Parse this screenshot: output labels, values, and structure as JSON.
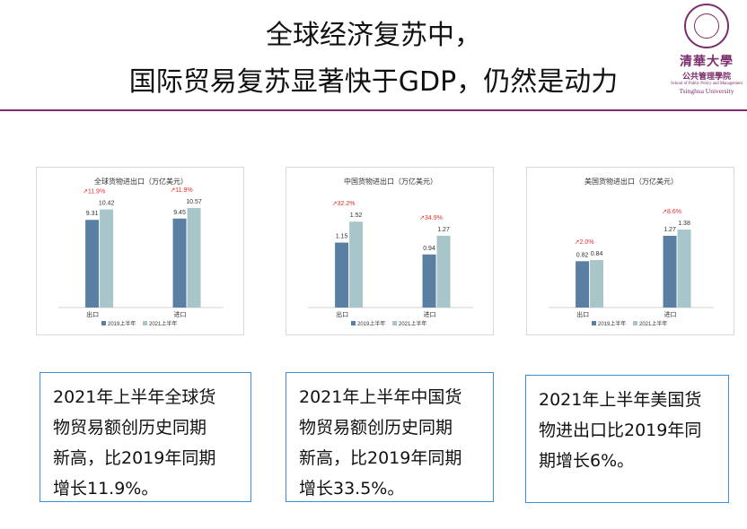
{
  "header": {
    "title_line1": "全球经济复苏中，",
    "title_line2": "国际贸易复苏显著快于GDP，仍然是动力"
  },
  "logo": {
    "cn_name": "清華大學",
    "cn_school": "公共管理學院",
    "en_school": "School of Public Policy and Management",
    "en_university": "Tsinghua University"
  },
  "colors": {
    "series_2019": "#5a7fa3",
    "series_2021": "#a8c6c9",
    "growth_label": "#e8302a",
    "accent_rule": "#7a2d6c",
    "box_border": "#3c8fd6"
  },
  "chart_data": [
    {
      "type": "bar",
      "title": "全球货物进出口（万亿美元）",
      "categories": [
        "出口",
        "进口"
      ],
      "series": [
        {
          "name": "2019上半年",
          "values": [
            9.31,
            9.45
          ]
        },
        {
          "name": "2021上半年",
          "values": [
            10.42,
            10.57
          ]
        }
      ],
      "growth": [
        "↗11.9%",
        "↗11.9%"
      ],
      "ylim": [
        0,
        12
      ],
      "legend": "bottom"
    },
    {
      "type": "bar",
      "title": "中国货物进出口（万亿美元）",
      "categories": [
        "出口",
        "进口"
      ],
      "series": [
        {
          "name": "2019上半年",
          "values": [
            1.15,
            0.94
          ]
        },
        {
          "name": "2021上半年",
          "values": [
            1.52,
            1.27
          ]
        }
      ],
      "growth": [
        "↗32.2%",
        "↗34.9%"
      ],
      "ylim": [
        0,
        2
      ],
      "legend": "bottom"
    },
    {
      "type": "bar",
      "title": "美国货物进出口（万亿美元）",
      "categories": [
        "出口",
        "进口"
      ],
      "series": [
        {
          "name": "2019上半年",
          "values": [
            0.82,
            1.27
          ]
        },
        {
          "name": "2021上半年",
          "values": [
            0.84,
            1.38
          ]
        }
      ],
      "growth": [
        "↗2.0%",
        "↗8.6%"
      ],
      "ylim": [
        0,
        2
      ],
      "legend": "bottom"
    }
  ],
  "notes": {
    "box1": [
      "2021年上半年全球货",
      "物贸易额创历史同期",
      "新高，比2019年同期",
      "增长11.9%。"
    ],
    "box2": [
      "2021年上半年中国货",
      "物贸易额创历史同期",
      "新高，比2019年同期",
      "增长33.5%。"
    ],
    "box3": [
      "2021年上半年美国货",
      "物进出口比2019年同",
      "期增长6%。"
    ]
  }
}
